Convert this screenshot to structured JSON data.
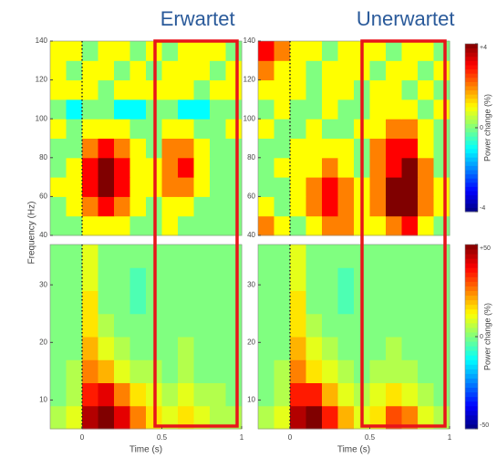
{
  "chart_data": [
    {
      "type": "heatmap",
      "title": "Erwartet",
      "ylabel": "Frequency (Hz)",
      "xlim": [
        -0.2,
        1
      ],
      "ylim": [
        40,
        140
      ],
      "yticks": [
        40,
        60,
        80,
        100,
        120,
        140
      ],
      "zlim": [
        -4,
        4
      ],
      "z": [
        [
          0,
          0,
          1,
          1,
          1,
          0,
          0,
          1,
          0,
          0,
          0,
          0
        ],
        [
          0,
          1,
          2,
          3,
          2,
          1,
          0,
          1,
          1,
          0,
          0,
          0
        ],
        [
          1,
          1,
          3,
          4,
          3,
          1,
          1,
          2,
          2,
          1,
          0,
          0
        ],
        [
          0,
          1,
          3,
          4,
          3,
          1,
          1,
          2,
          3,
          1,
          0,
          0
        ],
        [
          0,
          0,
          2,
          3,
          2,
          1,
          0,
          2,
          2,
          1,
          0,
          0
        ],
        [
          1,
          0,
          1,
          1,
          1,
          0,
          0,
          1,
          1,
          0,
          0,
          1
        ],
        [
          0,
          -1,
          0,
          0,
          -1,
          -1,
          0,
          0,
          -1,
          -1,
          0,
          0
        ],
        [
          1,
          1,
          1,
          0,
          1,
          1,
          1,
          1,
          1,
          0,
          1,
          1
        ],
        [
          1,
          0,
          1,
          1,
          0,
          1,
          0,
          1,
          1,
          1,
          0,
          1
        ],
        [
          1,
          1,
          0,
          1,
          1,
          0,
          1,
          0,
          1,
          1,
          1,
          0
        ]
      ]
    },
    {
      "type": "heatmap",
      "title": "Unerwartet",
      "xlim": [
        -0.2,
        1
      ],
      "ylim": [
        40,
        140
      ],
      "yticks": [
        40,
        60,
        80,
        100,
        120,
        140
      ],
      "zlim": [
        -4,
        4
      ],
      "colorbar": {
        "label": "Power change (%)",
        "ticks": [
          {
            "value": 4,
            "label": "+4"
          },
          0,
          -4
        ]
      },
      "z": [
        [
          2,
          1,
          0,
          1,
          2,
          2,
          1,
          1,
          2,
          3,
          1,
          0
        ],
        [
          1,
          0,
          1,
          2,
          3,
          2,
          1,
          2,
          4,
          4,
          2,
          1
        ],
        [
          0,
          0,
          1,
          2,
          3,
          2,
          1,
          2,
          4,
          4,
          2,
          1
        ],
        [
          0,
          1,
          1,
          1,
          2,
          1,
          0,
          2,
          3,
          4,
          2,
          0
        ],
        [
          0,
          0,
          1,
          1,
          1,
          1,
          0,
          2,
          3,
          3,
          1,
          0
        ],
        [
          1,
          0,
          0,
          1,
          0,
          0,
          1,
          1,
          2,
          2,
          1,
          0
        ],
        [
          0,
          1,
          0,
          0,
          1,
          0,
          0,
          1,
          1,
          1,
          0,
          1
        ],
        [
          1,
          1,
          1,
          0,
          1,
          1,
          0,
          1,
          1,
          0,
          1,
          0
        ],
        [
          2,
          1,
          1,
          0,
          1,
          1,
          1,
          0,
          1,
          1,
          0,
          1
        ],
        [
          3,
          2,
          1,
          1,
          0,
          1,
          1,
          1,
          0,
          1,
          1,
          0
        ]
      ]
    },
    {
      "type": "heatmap",
      "xlabel": "Time (s)",
      "xlim": [
        -0.2,
        1
      ],
      "xticks": [
        0,
        0.5,
        1
      ],
      "ylim": [
        5,
        37
      ],
      "yticks": [
        10,
        20,
        30
      ],
      "zlim": [
        -50,
        50
      ],
      "z": [
        [
          5,
          10,
          45,
          50,
          40,
          25,
          15,
          10,
          15,
          10,
          5,
          5
        ],
        [
          0,
          5,
          35,
          40,
          25,
          15,
          10,
          5,
          10,
          5,
          5,
          0
        ],
        [
          0,
          5,
          25,
          20,
          10,
          5,
          5,
          0,
          5,
          0,
          0,
          0
        ],
        [
          0,
          0,
          20,
          10,
          5,
          0,
          0,
          0,
          5,
          0,
          0,
          0
        ],
        [
          0,
          0,
          15,
          5,
          0,
          0,
          0,
          0,
          0,
          0,
          0,
          0
        ],
        [
          0,
          0,
          15,
          0,
          0,
          -5,
          0,
          0,
          0,
          0,
          0,
          0
        ],
        [
          0,
          0,
          10,
          0,
          0,
          -5,
          0,
          0,
          0,
          0,
          0,
          0
        ],
        [
          0,
          0,
          10,
          0,
          0,
          0,
          0,
          0,
          0,
          0,
          0,
          0
        ]
      ]
    },
    {
      "type": "heatmap",
      "xlabel": "Time (s)",
      "xlim": [
        -0.2,
        1
      ],
      "xticks": [
        0,
        0.5,
        1
      ],
      "ylim": [
        5,
        37
      ],
      "yticks": [
        10,
        20,
        30
      ],
      "zlim": [
        -50,
        50
      ],
      "colorbar": {
        "label": "Power change (%)",
        "ticks": [
          {
            "value": 50,
            "label": "+50"
          },
          0,
          -50
        ]
      },
      "z": [
        [
          5,
          10,
          45,
          50,
          35,
          20,
          10,
          15,
          30,
          25,
          10,
          5
        ],
        [
          0,
          5,
          35,
          35,
          20,
          10,
          5,
          10,
          15,
          10,
          5,
          0
        ],
        [
          0,
          5,
          25,
          15,
          10,
          5,
          0,
          5,
          5,
          5,
          0,
          0
        ],
        [
          0,
          0,
          20,
          10,
          5,
          0,
          0,
          0,
          5,
          0,
          0,
          0
        ],
        [
          0,
          0,
          15,
          5,
          0,
          0,
          0,
          0,
          0,
          0,
          0,
          0
        ],
        [
          0,
          0,
          15,
          0,
          0,
          -5,
          0,
          0,
          0,
          0,
          0,
          0
        ],
        [
          0,
          0,
          10,
          0,
          0,
          -5,
          0,
          0,
          0,
          0,
          0,
          0
        ],
        [
          0,
          0,
          10,
          0,
          0,
          0,
          0,
          0,
          0,
          0,
          0,
          0
        ]
      ]
    }
  ]
}
